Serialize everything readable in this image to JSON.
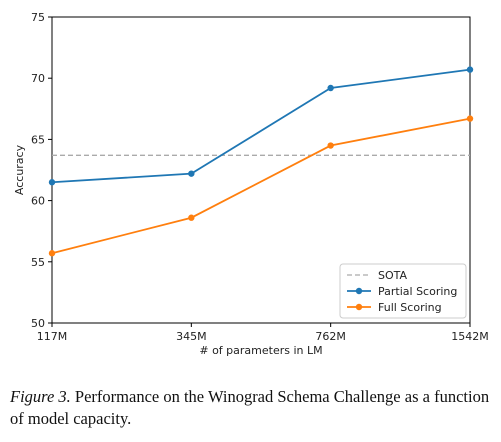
{
  "chart_data": {
    "type": "line",
    "categories": [
      "117M",
      "345M",
      "762M",
      "1542M"
    ],
    "xlabel": "# of parameters in LM",
    "ylabel": "Accuracy",
    "ylim": [
      50,
      75
    ],
    "yticks": [
      50,
      55,
      60,
      65,
      70,
      75
    ],
    "grid": false,
    "legend_position": "lower-right",
    "reference_line": {
      "name": "SOTA",
      "value": 63.7,
      "color": "#aaaaaa",
      "style": "dashed"
    },
    "series": [
      {
        "name": "Partial Scoring",
        "color": "#1f77b4",
        "values": [
          61.5,
          62.2,
          69.2,
          70.7
        ]
      },
      {
        "name": "Full Scoring",
        "color": "#ff7f0e",
        "values": [
          55.7,
          58.6,
          64.5,
          66.7
        ]
      }
    ]
  },
  "caption": {
    "figure_label": "Figure 3.",
    "text": " Performance on the Winograd Schema Challenge as a function of model capacity."
  }
}
